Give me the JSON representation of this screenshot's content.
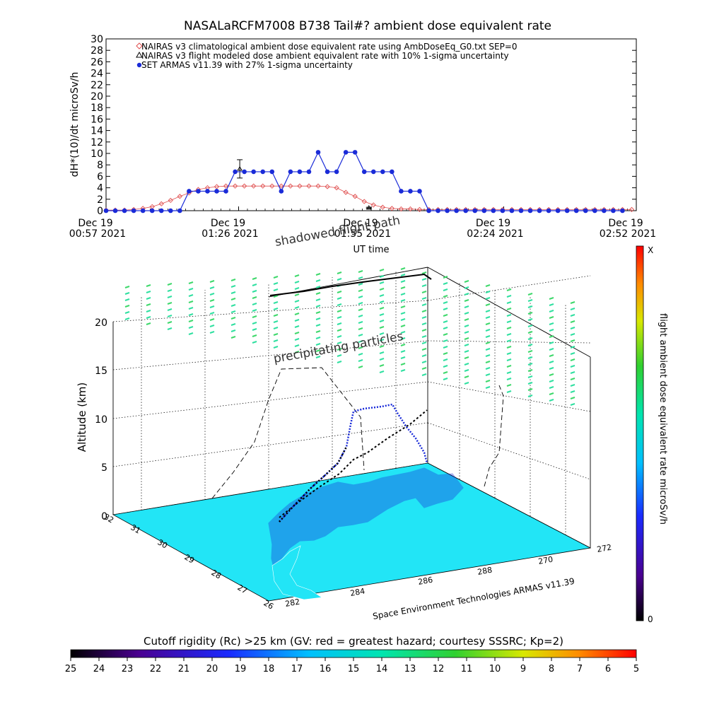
{
  "title": "NASALaRCFM7008  B738 Tail#? ambient dose equivalent rate",
  "top_chart": {
    "ylabel": "dH*(10)/dt microSv/h",
    "xlabel": "UT time",
    "x_ticks": [
      {
        "line1": "Dec 19",
        "line2": "00:57 2021"
      },
      {
        "line1": "Dec 19",
        "line2": "01:26 2021"
      },
      {
        "line1": "Dec 19",
        "line2": "01:55 2021"
      },
      {
        "line1": "Dec 19",
        "line2": "02:24 2021"
      },
      {
        "line1": "Dec 19",
        "line2": "02:52 2021"
      }
    ],
    "y_ticks": [
      "0",
      "2",
      "4",
      "6",
      "8",
      "10",
      "12",
      "14",
      "16",
      "18",
      "20",
      "22",
      "24",
      "26",
      "28",
      "30"
    ],
    "legend": [
      "NAIRAS v3 climatological ambient dose equivalent rate using AmbDoseEq_G0.txt SEP=0",
      "NAIRAS v3 flight modeled dose ambient equivalent rate with 10% 1-sigma uncertainty",
      "SET ARMAS v11.39 with 27% 1-sigma uncertainty"
    ]
  },
  "chart_data": [
    {
      "type": "line",
      "x_unit": "minutes after 00:57 UT, Dec 19 2021",
      "xlim": [
        0,
        115
      ],
      "ylim": [
        0,
        30
      ],
      "series": [
        {
          "name": "NAIRAS v3 climatological ambient dose equivalent rate using AmbDoseEq_G0.txt SEP=0",
          "color": "#e05050",
          "marker": "diamond-open",
          "x": [
            0,
            2,
            4,
            6,
            8,
            10,
            12,
            14,
            16,
            18,
            20,
            22,
            24,
            26,
            28,
            30,
            32,
            34,
            36,
            38,
            40,
            42,
            44,
            46,
            48,
            50,
            52,
            54,
            56,
            58,
            60,
            62,
            64,
            66,
            68,
            70,
            72,
            74,
            76,
            78,
            80,
            82,
            84,
            86,
            88,
            90,
            92,
            94,
            96,
            98,
            100,
            102,
            104,
            106,
            108,
            110,
            112,
            114
          ],
          "y": [
            0.1,
            0.1,
            0.1,
            0.2,
            0.4,
            0.7,
            1.2,
            1.8,
            2.5,
            3.1,
            3.7,
            4.0,
            4.2,
            4.3,
            4.3,
            4.3,
            4.3,
            4.3,
            4.3,
            4.3,
            4.3,
            4.3,
            4.3,
            4.3,
            4.2,
            4.0,
            3.2,
            2.5,
            1.6,
            1.0,
            0.6,
            0.4,
            0.3,
            0.3,
            0.2,
            0.2,
            0.2,
            0.2,
            0.2,
            0.2,
            0.2,
            0.2,
            0.2,
            0.2,
            0.2,
            0.2,
            0.2,
            0.2,
            0.2,
            0.2,
            0.2,
            0.2,
            0.2,
            0.2,
            0.2,
            0.2,
            0.2,
            0.2
          ]
        },
        {
          "name": "NAIRAS v3 flight modeled dose ambient equivalent rate with 10% 1-sigma uncertainty",
          "color": "#000000",
          "marker": "triangle-open",
          "x": [
            29,
            57
          ],
          "y": [
            7.3,
            0.5
          ],
          "err": [
            1.6,
            0.1
          ]
        },
        {
          "name": "SET ARMAS v11.39 with 27% 1-sigma uncertainty",
          "color": "#1a2bd8",
          "marker": "circle-filled",
          "x": [
            0,
            2,
            4,
            6,
            8,
            10,
            12,
            14,
            16,
            18,
            20,
            22,
            24,
            26,
            28,
            30,
            32,
            34,
            36,
            38,
            40,
            42,
            44,
            46,
            48,
            50,
            52,
            54,
            56,
            58,
            60,
            62,
            64,
            66,
            68,
            70,
            72,
            74,
            76,
            78,
            80,
            82,
            84,
            86,
            88,
            90,
            92,
            94,
            96,
            98,
            100,
            102,
            104,
            106,
            108,
            110,
            112
          ],
          "y": [
            0,
            0,
            0,
            0,
            0,
            0,
            0,
            0,
            0,
            3.4,
            3.4,
            3.4,
            3.4,
            3.4,
            6.8,
            6.8,
            6.8,
            6.8,
            6.8,
            3.4,
            6.8,
            6.8,
            6.8,
            10.2,
            6.8,
            6.8,
            10.2,
            10.2,
            6.8,
            6.8,
            6.8,
            6.8,
            3.4,
            3.4,
            3.4,
            0,
            0,
            0,
            0,
            0,
            0,
            0,
            0,
            0,
            0,
            0,
            0,
            0,
            0,
            0,
            0,
            0,
            0,
            0,
            0,
            0,
            0
          ]
        }
      ]
    },
    {
      "type": "scatter",
      "subtype": "3d-trajectory",
      "zlabel": "Altitude (km)",
      "z_ticks": [
        "0",
        "5",
        "10",
        "15",
        "20"
      ],
      "lat_ticks": [
        "26",
        "27",
        "28",
        "29",
        "30",
        "31",
        "32"
      ],
      "lon_ticks": [
        "282",
        "284",
        "286",
        "288",
        "270",
        "272"
      ],
      "colorbar_label": "flight ambient dose equivalent rate microSv/h",
      "colorbar_min": "0",
      "colorbar_max": "X",
      "annotations": [
        "shadowed flight path",
        "precipitating particles",
        "Dec 19 01:55 2021"
      ],
      "credit": "Space Environment Technologies ARMAS v11.39",
      "flight_profile_alt_km": [
        0,
        1,
        3,
        5,
        7,
        9,
        10.5,
        11.3,
        11.6,
        11.6,
        11.6,
        11.5,
        11,
        9,
        7,
        5,
        3,
        1,
        0
      ]
    },
    {
      "type": "heatmap",
      "subtype": "colorbar",
      "title": "Cutoff rigidity (Rc) >25 km (GV: red = greatest hazard; courtesy SSSRC; Kp=2)",
      "ticks": [
        "25",
        "24",
        "23",
        "22",
        "21",
        "20",
        "19",
        "18",
        "17",
        "16",
        "15",
        "14",
        "13",
        "12",
        "11",
        "10",
        "9",
        "8",
        "7",
        "6",
        "5"
      ]
    }
  ],
  "colors": {
    "map_sea": "#22e5f6",
    "land_coast": "#1a2bd8",
    "precipitating": "#3ed86b",
    "nairas_clim": "#e05050",
    "armas": "#1a2bd8"
  }
}
